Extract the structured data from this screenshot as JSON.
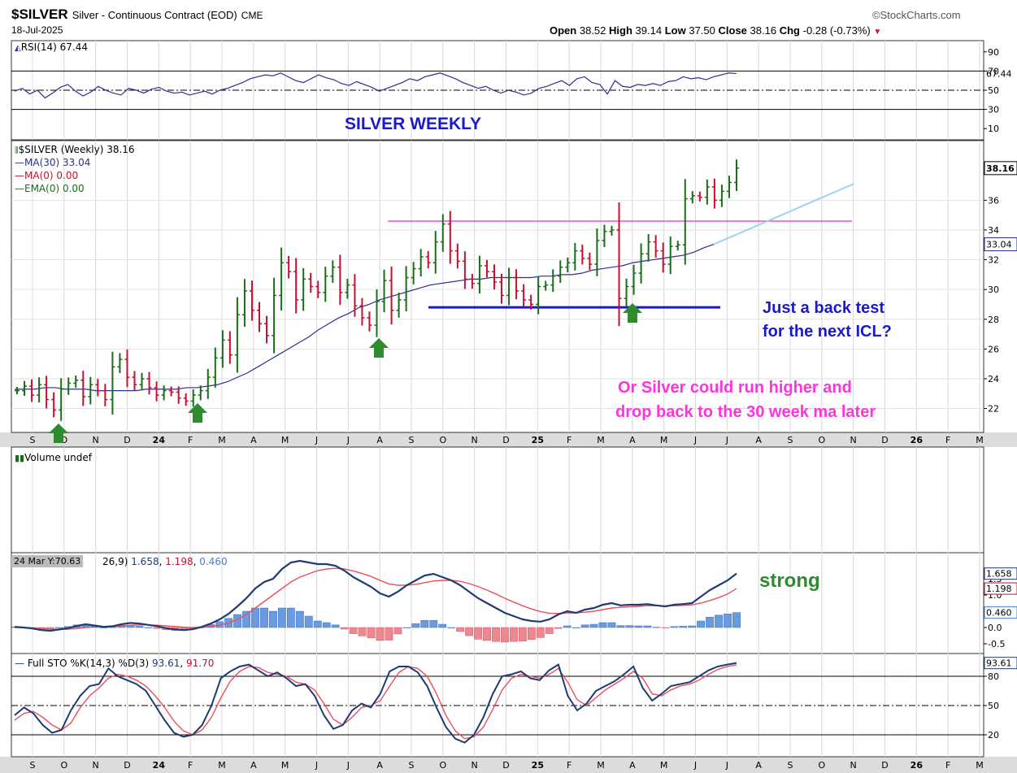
{
  "header": {
    "symbol": "$SILVER",
    "name": "Silver - Continuous Contract (EOD)",
    "exchange": "CME",
    "date": "18-Jul-2025",
    "brand": "©StockCharts.com",
    "open_label": "Open",
    "open": "38.52",
    "high_label": "High",
    "high": "39.14",
    "low_label": "Low",
    "low": "37.50",
    "close_label": "Close",
    "close": "38.16",
    "chg_label": "Chg",
    "chg": "-0.28 (-0.73%)"
  },
  "legends": {
    "rsi": "RSI(14) 67.44",
    "price": "$SILVER (Weekly) 38.16",
    "ma30": "MA(30) 33.04",
    "ma0": "MA(0) 0.00",
    "ema0": "EMA(0) 0.00",
    "volume": "Volume undef",
    "macd_tooltip": "24 Mar Y:70.63",
    "macd_params": "26,9)",
    "macd_v1": "1.658",
    "macd_v2": "1.198",
    "macd_v3": "0.460",
    "sto": "Full STO %K(14,3) %D(3)",
    "sto_v1": "93.61",
    "sto_v2": "91.70"
  },
  "annotations": {
    "title": "SILVER WEEKLY",
    "back_test_1": "Just a back test",
    "back_test_2": "for the next ICL?",
    "run_1": "Or Silver could run higher and",
    "run_2": "drop back to the 30 week ma later",
    "strong": "strong"
  },
  "colors": {
    "up": "#1a6e1a",
    "down": "#c8102e",
    "ma": "#2b2f8f",
    "resistance": "#ff44dd",
    "support": "#1a1acc",
    "trend": "#9fd0f0",
    "annotation_blue": "#1a1acc",
    "annotation_pink": "#ff33dd",
    "annotation_green": "#2e8b2e",
    "macd_line": "#1f3b73",
    "macd_signal": "#e8505b",
    "hist_pos": "#6a9be0",
    "hist_neg": "#ee8890",
    "arrow": "#2e8b2e"
  },
  "chart_data": [
    {
      "type": "line",
      "title": "RSI(14)",
      "y_ticks": [
        "90",
        "70",
        "50",
        "30",
        "10"
      ],
      "levels": [
        70,
        50,
        30
      ],
      "last_value": "67.44",
      "ylim": [
        0,
        100
      ],
      "values": [
        49,
        52,
        46,
        50,
        42,
        47,
        53,
        56,
        49,
        44,
        48,
        54,
        50,
        47,
        45,
        52,
        50,
        47,
        51,
        53,
        49,
        47,
        48,
        45,
        47,
        49,
        46,
        50,
        52,
        55,
        58,
        62,
        64,
        66,
        65,
        68,
        64,
        60,
        58,
        62,
        66,
        63,
        61,
        57,
        55,
        59,
        56,
        53,
        49,
        52,
        55,
        58,
        62,
        60,
        64,
        66,
        68,
        65,
        62,
        58,
        55,
        52,
        54,
        50,
        47,
        50,
        48,
        45,
        47,
        52,
        54,
        57,
        60,
        55,
        62,
        64,
        58,
        56,
        46,
        60,
        54,
        53,
        56,
        55,
        57,
        55,
        59,
        60,
        64,
        62,
        63,
        61,
        64,
        66,
        68,
        67.44
      ]
    },
    {
      "type": "candlestick",
      "title": "$SILVER (Weekly)",
      "x_ticks": [
        "S",
        "O",
        "N",
        "D",
        "24",
        "F",
        "M",
        "A",
        "M",
        "J",
        "J",
        "A",
        "S",
        "O",
        "N",
        "D",
        "25",
        "F",
        "M",
        "A",
        "M",
        "J",
        "J",
        "A",
        "S",
        "O",
        "N",
        "D",
        "26",
        "F",
        "M"
      ],
      "y_ticks": [
        "36",
        "34",
        "32",
        "30",
        "28",
        "26",
        "24",
        "22"
      ],
      "ylim": [
        20.5,
        39.9
      ],
      "last_value": "38.16",
      "ma30_last": "33.04",
      "resistance_level": 34.6,
      "support_level": 28.8,
      "closes": [
        23.2,
        23.5,
        22.9,
        23.6,
        22.6,
        21.9,
        23.3,
        23.7,
        23.9,
        22.8,
        23.6,
        23.2,
        22.6,
        24.8,
        25.3,
        24.1,
        23.6,
        24.0,
        23.4,
        22.9,
        23.2,
        23.1,
        22.7,
        22.5,
        22.9,
        23.2,
        24.1,
        25.4,
        26.6,
        25.6,
        28.3,
        29.9,
        28.6,
        27.7,
        26.9,
        29.6,
        31.8,
        31.2,
        29.3,
        30.7,
        30.2,
        29.8,
        30.9,
        31.5,
        29.8,
        30.3,
        28.9,
        28.1,
        27.6,
        29.2,
        30.6,
        28.6,
        29.3,
        30.8,
        31.4,
        32.2,
        31.8,
        33.2,
        34.4,
        32.6,
        31.9,
        30.7,
        30.4,
        31.6,
        31.2,
        30.5,
        29.6,
        30.8,
        29.9,
        29.3,
        29.0,
        30.2,
        30.3,
        30.9,
        31.5,
        31.8,
        32.6,
        32.1,
        31.7,
        33.3,
        33.9,
        34.0,
        29.4,
        30.2,
        31.1,
        32.4,
        33.2,
        32.6,
        31.7,
        32.9,
        33.0,
        36.1,
        36.3,
        36.2,
        36.9,
        36.0,
        36.6,
        37.2,
        38.16
      ],
      "ma30": [
        23.3,
        23.3,
        23.3,
        23.4,
        23.4,
        23.3,
        23.3,
        23.3,
        23.2,
        23.2,
        23.2,
        23.2,
        23.2,
        23.3,
        23.3,
        23.3,
        23.3,
        23.4,
        23.4,
        23.5,
        23.6,
        23.8,
        24.1,
        24.4,
        24.8,
        25.2,
        25.6,
        26.0,
        26.4,
        26.8,
        27.3,
        27.7,
        28.1,
        28.4,
        28.8,
        29.0,
        29.3,
        29.5,
        29.7,
        29.9,
        30.1,
        30.3,
        30.4,
        30.5,
        30.6,
        30.7,
        30.7,
        30.8,
        30.8,
        30.8,
        30.8,
        30.8,
        30.9,
        30.9,
        31.0,
        31.0,
        31.1,
        31.3,
        31.4,
        31.5,
        31.6,
        31.8,
        31.9,
        32.0,
        32.1,
        32.2,
        32.3,
        32.5,
        32.8,
        33.04
      ]
    },
    {
      "type": "line",
      "title": "MACD",
      "y_ticks": [
        "1.5",
        "1.0",
        "0.5",
        "0.0",
        "-0.5"
      ],
      "last_values": [
        "1.658",
        "1.198",
        "0.460"
      ],
      "ylim": [
        -0.7,
        2.2
      ],
      "macd": [
        0.02,
        0.0,
        -0.03,
        -0.08,
        -0.1,
        -0.06,
        -0.02,
        0.05,
        0.1,
        0.06,
        0.02,
        0.04,
        0.1,
        0.14,
        0.12,
        0.08,
        0.04,
        -0.02,
        -0.06,
        -0.08,
        -0.05,
        0.02,
        0.12,
        0.25,
        0.42,
        0.65,
        0.9,
        1.2,
        1.4,
        1.5,
        1.8,
        2.0,
        2.05,
        2.0,
        1.95,
        1.95,
        1.9,
        1.75,
        1.55,
        1.4,
        1.25,
        1.05,
        0.95,
        1.1,
        1.3,
        1.45,
        1.6,
        1.65,
        1.55,
        1.45,
        1.3,
        1.1,
        0.9,
        0.75,
        0.6,
        0.45,
        0.35,
        0.25,
        0.2,
        0.18,
        0.25,
        0.4,
        0.5,
        0.45,
        0.55,
        0.6,
        0.7,
        0.75,
        0.68,
        0.7,
        0.7,
        0.72,
        0.68,
        0.65,
        0.7,
        0.72,
        0.75,
        0.95,
        1.15,
        1.3,
        1.45,
        1.658
      ],
      "signal": [
        0.0,
        0.0,
        -0.01,
        -0.03,
        -0.05,
        -0.06,
        -0.05,
        -0.03,
        0.0,
        0.02,
        0.02,
        0.03,
        0.05,
        0.07,
        0.08,
        0.08,
        0.07,
        0.05,
        0.03,
        0.01,
        0.0,
        0.0,
        0.03,
        0.07,
        0.14,
        0.25,
        0.4,
        0.6,
        0.8,
        1.0,
        1.2,
        1.4,
        1.55,
        1.65,
        1.75,
        1.8,
        1.82,
        1.8,
        1.74,
        1.66,
        1.57,
        1.45,
        1.34,
        1.3,
        1.3,
        1.33,
        1.38,
        1.43,
        1.45,
        1.45,
        1.42,
        1.35,
        1.26,
        1.15,
        1.03,
        0.9,
        0.78,
        0.67,
        0.57,
        0.49,
        0.44,
        0.43,
        0.45,
        0.45,
        0.47,
        0.5,
        0.55,
        0.6,
        0.62,
        0.64,
        0.65,
        0.67,
        0.67,
        0.66,
        0.67,
        0.68,
        0.7,
        0.75,
        0.83,
        0.92,
        1.03,
        1.198
      ],
      "histogram": [
        0.02,
        0.0,
        -0.02,
        -0.05,
        -0.05,
        0.0,
        0.03,
        0.08,
        0.1,
        0.04,
        0.0,
        0.01,
        0.05,
        0.07,
        0.04,
        0.0,
        -0.03,
        -0.07,
        -0.09,
        -0.09,
        -0.05,
        0.02,
        0.09,
        0.18,
        0.28,
        0.4,
        0.5,
        0.6,
        0.6,
        0.5,
        0.6,
        0.6,
        0.5,
        0.35,
        0.2,
        0.15,
        0.08,
        -0.05,
        -0.19,
        -0.26,
        -0.32,
        -0.4,
        -0.39,
        -0.2,
        0.0,
        0.12,
        0.22,
        0.22,
        0.1,
        0.0,
        -0.12,
        -0.25,
        -0.36,
        -0.4,
        -0.43,
        -0.45,
        -0.43,
        -0.42,
        -0.37,
        -0.31,
        -0.19,
        -0.03,
        0.05,
        0.0,
        0.08,
        0.1,
        0.15,
        0.15,
        0.06,
        0.06,
        0.05,
        0.05,
        0.01,
        -0.01,
        0.03,
        0.04,
        0.05,
        0.2,
        0.32,
        0.38,
        0.42,
        0.46
      ]
    },
    {
      "type": "line",
      "title": "Full STO %K(14,3) %D(3)",
      "y_ticks": [
        "80",
        "50",
        "20"
      ],
      "last_values": [
        "93.61",
        "91.70"
      ],
      "levels": [
        80,
        50,
        20
      ],
      "ylim": [
        0,
        100
      ],
      "k": [
        40,
        48,
        42,
        30,
        22,
        25,
        45,
        60,
        70,
        72,
        88,
        80,
        76,
        72,
        65,
        50,
        35,
        22,
        18,
        20,
        30,
        50,
        78,
        85,
        90,
        92,
        86,
        80,
        84,
        78,
        70,
        72,
        60,
        40,
        26,
        30,
        45,
        52,
        48,
        62,
        85,
        90,
        90,
        84,
        70,
        48,
        28,
        16,
        12,
        20,
        38,
        62,
        80,
        82,
        85,
        78,
        76,
        86,
        92,
        60,
        45,
        52,
        65,
        70,
        75,
        82,
        90,
        68,
        55,
        62,
        70,
        72,
        74,
        80,
        86,
        90,
        92,
        93.61
      ],
      "d": [
        35,
        42,
        44,
        38,
        30,
        25,
        32,
        48,
        60,
        68,
        78,
        82,
        80,
        76,
        70,
        60,
        48,
        34,
        24,
        20,
        25,
        38,
        58,
        75,
        85,
        90,
        89,
        84,
        82,
        80,
        74,
        72,
        66,
        52,
        36,
        30,
        38,
        48,
        50,
        55,
        70,
        84,
        90,
        88,
        80,
        62,
        40,
        24,
        16,
        18,
        28,
        46,
        66,
        78,
        82,
        80,
        78,
        82,
        88,
        74,
        56,
        50,
        58,
        66,
        72,
        78,
        85,
        78,
        62,
        60,
        66,
        70,
        72,
        76,
        82,
        87,
        90,
        91.7
      ]
    }
  ]
}
